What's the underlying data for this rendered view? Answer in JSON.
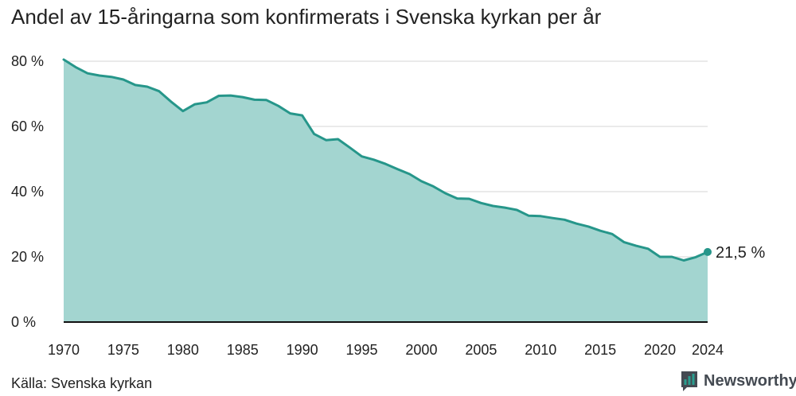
{
  "title": "Andel av 15-åringarna som konfirmerats i Svenska kyrkan per år",
  "source": "Källa: Svenska kyrkan",
  "brand": {
    "name": "Newsworthy",
    "logo_icon": "newsworthy-logo-icon"
  },
  "colors": {
    "area_fill": "#a3d5d0",
    "line": "#26968a",
    "grid": "#dddddd",
    "baseline": "#111111",
    "brand_dark": "#444a52",
    "brand_teal": "#2a9d8f"
  },
  "chart_data": {
    "type": "area",
    "title": "Andel av 15-åringarna som konfirmerats i Svenska kyrkan per år",
    "xlabel": "",
    "ylabel": "",
    "x": [
      1970,
      1971,
      1972,
      1973,
      1974,
      1975,
      1976,
      1977,
      1978,
      1979,
      1980,
      1981,
      1982,
      1983,
      1984,
      1985,
      1986,
      1987,
      1988,
      1989,
      1990,
      1991,
      1992,
      1993,
      1994,
      1995,
      1996,
      1997,
      1998,
      1999,
      2000,
      2001,
      2002,
      2003,
      2004,
      2005,
      2006,
      2007,
      2008,
      2009,
      2010,
      2011,
      2012,
      2013,
      2014,
      2015,
      2016,
      2017,
      2018,
      2019,
      2020,
      2021,
      2022,
      2023,
      2024
    ],
    "series": [
      {
        "values": [
          80.5,
          78.2,
          76.3,
          75.6,
          75.2,
          74.4,
          72.7,
          72.2,
          70.8,
          67.6,
          64.7,
          66.8,
          67.4,
          69.4,
          69.5,
          69.0,
          68.2,
          68.1,
          66.3,
          64.0,
          63.4,
          57.7,
          55.8,
          56.1,
          53.5,
          50.8,
          49.8,
          48.5,
          46.9,
          45.4,
          43.2,
          41.6,
          39.5,
          37.9,
          37.8,
          36.5,
          35.6,
          35.1,
          34.4,
          32.6,
          32.5,
          31.9,
          31.4,
          30.2,
          29.3,
          28.0,
          27.0,
          24.5,
          23.4,
          22.5,
          20.0,
          20.0,
          18.9,
          19.9,
          21.5
        ]
      }
    ],
    "xticks": [
      1970,
      1975,
      1980,
      1985,
      1990,
      1995,
      2000,
      2005,
      2010,
      2015,
      2020,
      2024
    ],
    "yticks": [
      0,
      20,
      40,
      60,
      80
    ],
    "ytick_labels": [
      "0 %",
      "20 %",
      "40 %",
      "60 %",
      "80 %"
    ],
    "xlim": [
      1970,
      2024
    ],
    "ylim": [
      0,
      80
    ],
    "grid": "horizontal",
    "end_label": "21,5  %"
  }
}
